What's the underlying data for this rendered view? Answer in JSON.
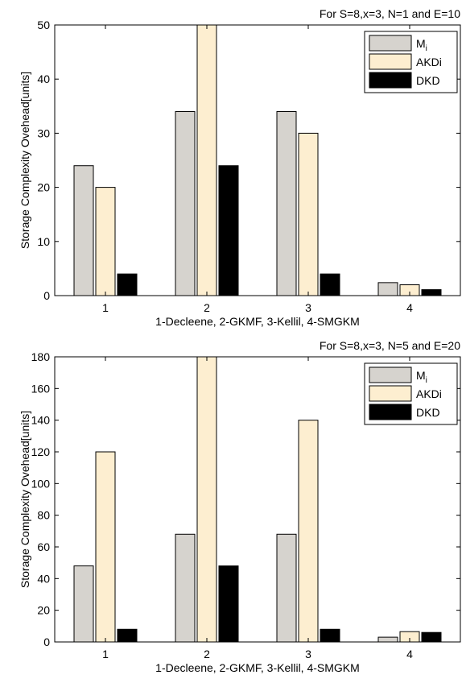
{
  "chart_data": [
    {
      "type": "bar",
      "title": "For S=8,x=3, N=1 and E=10",
      "xlabel": "1-Decleene, 2-GKMF, 3-Kellil, 4-SMGKM",
      "ylabel": "Storage Complexity Ovehead[units]",
      "categories": [
        "1",
        "2",
        "3",
        "4"
      ],
      "ylim": [
        0,
        50
      ],
      "yticks": [
        0,
        10,
        20,
        30,
        40,
        50
      ],
      "grid": false,
      "legend_position": "top-right",
      "series": [
        {
          "name": "M",
          "name_subscript": "i",
          "color": "#d6d3ce",
          "values": [
            24,
            34,
            34,
            2.4
          ]
        },
        {
          "name": "AKDi",
          "color": "#fdeed0",
          "values": [
            20,
            50,
            30,
            2
          ]
        },
        {
          "name": "DKD",
          "color": "#000000",
          "values": [
            4,
            24,
            4,
            1.1
          ]
        }
      ]
    },
    {
      "type": "bar",
      "title": "For S=8,x=3, N=5 and E=20",
      "xlabel": "1-Decleene, 2-GKMF, 3-Kellil, 4-SMGKM",
      "ylabel": "Storage Complexity Ovehead[units]",
      "categories": [
        "1",
        "2",
        "3",
        "4"
      ],
      "ylim": [
        0,
        180
      ],
      "yticks": [
        0,
        20,
        40,
        60,
        80,
        100,
        120,
        140,
        160,
        180
      ],
      "grid": false,
      "legend_position": "top-right",
      "series": [
        {
          "name": "M",
          "name_subscript": "i",
          "color": "#d6d3ce",
          "values": [
            48,
            68,
            68,
            3
          ]
        },
        {
          "name": "AKDi",
          "color": "#fdeed0",
          "values": [
            120,
            180,
            140,
            6.5
          ]
        },
        {
          "name": "DKD",
          "color": "#000000",
          "values": [
            8,
            48,
            8,
            6
          ]
        }
      ]
    }
  ]
}
